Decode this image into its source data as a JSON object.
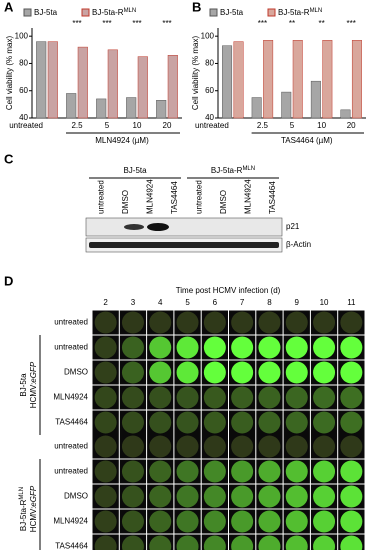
{
  "chart_data": [
    {
      "type": "bar",
      "panel": "A",
      "categories": [
        "untreated",
        "2.5",
        "5",
        "10",
        "20"
      ],
      "xlabel": "MLN4924 (µM)",
      "ylabel": "Cell viability (% max)",
      "series": [
        {
          "name": "BJ-5ta",
          "color": "#a6a6a6",
          "values": [
            96,
            58,
            54,
            55,
            53
          ]
        },
        {
          "name": "BJ-5ta-R",
          "name_sup": "MLN",
          "color": "#c9a3a3",
          "values": [
            96,
            92,
            90,
            85,
            86
          ]
        }
      ],
      "significance": [
        null,
        "***",
        "***",
        "***",
        "***"
      ],
      "ylim": [
        40,
        106
      ],
      "yticks": [
        40,
        60,
        80,
        100
      ]
    },
    {
      "type": "bar",
      "panel": "B",
      "categories": [
        "untreated",
        "2.5",
        "5",
        "10",
        "20"
      ],
      "xlabel": "TAS4464 (µM)",
      "ylabel": "Cell viability (% max)",
      "series": [
        {
          "name": "BJ-5ta",
          "color": "#a6a6a6",
          "values": [
            93,
            55,
            59,
            67,
            46
          ]
        },
        {
          "name": "BJ-5ta-R",
          "name_sup": "MLN",
          "color": "#d9a79c",
          "values": [
            96,
            97,
            97,
            97,
            97
          ]
        }
      ],
      "significance": [
        null,
        "***",
        "**",
        "**",
        "***"
      ],
      "ylim": [
        40,
        106
      ],
      "yticks": [
        40,
        60,
        80,
        100
      ]
    }
  ],
  "blot": {
    "panel": "C",
    "groups": [
      {
        "name": "BJ-5ta"
      },
      {
        "name": "BJ-5ta-R",
        "name_sup": "MLN"
      }
    ],
    "lanes": [
      "untreated",
      "DMSO",
      "MLN4924",
      "TAS4464",
      "untreated",
      "DMSO",
      "MLN4924",
      "TAS4464"
    ],
    "rows": [
      "p21",
      "β-Actin"
    ]
  },
  "wells": {
    "panel": "D",
    "title": "Time post HCMV infection (d)",
    "days": [
      "2",
      "3",
      "4",
      "5",
      "6",
      "7",
      "8",
      "9",
      "10",
      "11"
    ],
    "groups": [
      {
        "cell": "BJ-5ta",
        "cell_sup": "",
        "virus": "HCMV:",
        "virus_em": "eGFP",
        "rows": [
          "untreated",
          "untreated",
          "DMSO",
          "MLN4924",
          "TAS4464"
        ]
      },
      {
        "cell": "BJ-5ta-R",
        "cell_sup": "MLN",
        "virus": "HCMV:",
        "virus_em": "eGFP",
        "rows": [
          "untreated",
          "untreated",
          "DMSO",
          "MLN4924",
          "TAS4464"
        ]
      }
    ]
  }
}
